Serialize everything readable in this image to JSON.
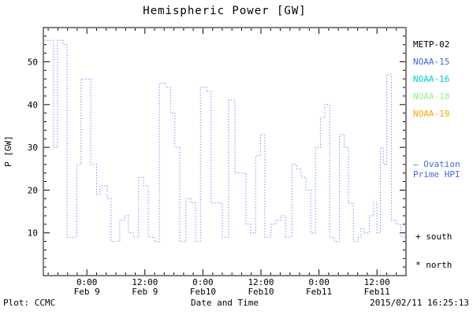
{
  "footer": {
    "plot_credit": "Plot: CCMC",
    "timestamp": "2015/02/11 16:25:13"
  },
  "legend": {
    "satellites": [
      {
        "label": "METP-02",
        "color": "#000000"
      },
      {
        "label": "NOAA-15",
        "color": "#4169e1"
      },
      {
        "label": "NOAA-16",
        "color": "#00ced1"
      },
      {
        "label": "NOAA-18",
        "color": "#90ee90"
      },
      {
        "label": "NOAA-19",
        "color": "#ffa500"
      }
    ],
    "series_note_line1": "– Ovation",
    "series_note_line2": "Prime HPI",
    "series_note_color": "#4169e1",
    "south_marker": "+ south",
    "north_marker": "* north"
  },
  "chart_data": {
    "type": "line",
    "line_style": "dotted-step",
    "line_color": "#4169e1",
    "title": "Hemispheric Power [GW]",
    "xlabel": "Date and Time",
    "ylabel": "P [GW]",
    "ylim": [
      0,
      58
    ],
    "yticks": [
      10,
      20,
      30,
      40,
      50
    ],
    "y_minor_step": 2,
    "x_hours_total": 75,
    "x_minor_step": 2,
    "xticks": [
      {
        "hour": 9,
        "time": "0:00",
        "date": "Feb 9"
      },
      {
        "hour": 21,
        "time": "12:00",
        "date": "Feb 9"
      },
      {
        "hour": 33,
        "time": "0:00",
        "date": "Feb10"
      },
      {
        "hour": 45,
        "time": "12:00",
        "date": "Feb10"
      },
      {
        "hour": 57,
        "time": "0:00",
        "date": "Feb11"
      },
      {
        "hour": 69,
        "time": "12:00",
        "date": "Feb11"
      }
    ],
    "steps": [
      [
        0.3,
        55
      ],
      [
        2.1,
        30
      ],
      [
        2.9,
        55
      ],
      [
        4.1,
        54
      ],
      [
        4.9,
        9
      ],
      [
        6.9,
        26
      ],
      [
        7.8,
        46
      ],
      [
        9.8,
        26
      ],
      [
        11.0,
        19
      ],
      [
        11.7,
        21
      ],
      [
        13.2,
        18
      ],
      [
        14.0,
        8
      ],
      [
        15.8,
        13
      ],
      [
        16.8,
        14
      ],
      [
        17.6,
        10
      ],
      [
        18.6,
        9
      ],
      [
        19.7,
        23
      ],
      [
        20.7,
        21
      ],
      [
        21.7,
        9
      ],
      [
        23.0,
        8
      ],
      [
        24.0,
        45
      ],
      [
        25.3,
        44
      ],
      [
        26.3,
        38
      ],
      [
        27.2,
        30
      ],
      [
        28.2,
        8
      ],
      [
        29.5,
        18
      ],
      [
        30.5,
        17
      ],
      [
        31.5,
        8
      ],
      [
        32.5,
        44
      ],
      [
        33.8,
        43
      ],
      [
        34.7,
        17
      ],
      [
        36.0,
        17
      ],
      [
        37.0,
        9
      ],
      [
        38.3,
        41
      ],
      [
        39.6,
        24
      ],
      [
        41.0,
        24
      ],
      [
        41.9,
        12
      ],
      [
        42.9,
        10
      ],
      [
        43.9,
        28
      ],
      [
        44.9,
        33
      ],
      [
        45.8,
        9
      ],
      [
        47.1,
        12
      ],
      [
        48.1,
        13
      ],
      [
        49.1,
        14
      ],
      [
        50.1,
        9
      ],
      [
        51.4,
        26
      ],
      [
        52.4,
        25
      ],
      [
        53.3,
        23
      ],
      [
        54.3,
        20
      ],
      [
        55.3,
        10
      ],
      [
        56.3,
        30
      ],
      [
        57.3,
        37
      ],
      [
        58.2,
        40
      ],
      [
        59.2,
        9
      ],
      [
        60.2,
        8
      ],
      [
        61.2,
        33
      ],
      [
        62.2,
        30
      ],
      [
        63.1,
        17
      ],
      [
        64.1,
        8
      ],
      [
        65.1,
        9
      ],
      [
        65.7,
        11
      ],
      [
        66.4,
        10
      ],
      [
        67.4,
        14
      ],
      [
        68.3,
        17
      ],
      [
        69.0,
        10
      ],
      [
        69.7,
        30
      ],
      [
        70.3,
        26
      ],
      [
        71.0,
        47
      ],
      [
        72.0,
        13
      ],
      [
        73.0,
        12
      ],
      [
        73.9,
        9
      ]
    ],
    "t_end": 74.9
  }
}
